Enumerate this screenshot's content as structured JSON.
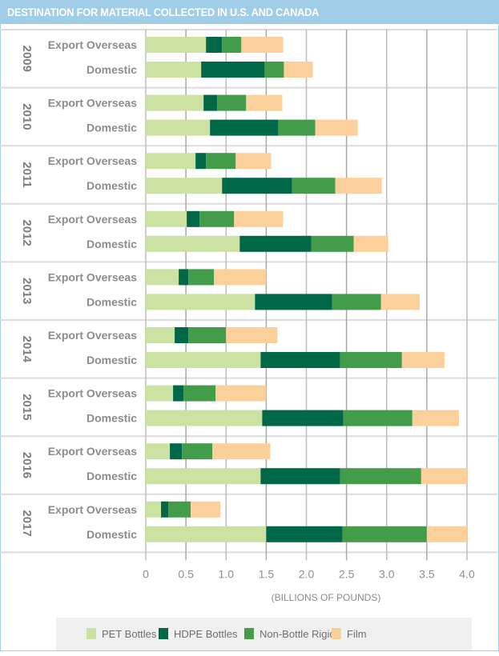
{
  "chart_data": {
    "type": "bar",
    "orientation": "horizontal",
    "stacked": true,
    "title": "DESTINATION FOR MATERIAL COLLECTED IN U.S. AND CANADA",
    "xlabel": "(BILLIONS OF POUNDS)",
    "ylabel": "",
    "xlim": [
      0,
      4.0
    ],
    "xticks": [
      "0",
      "0.5",
      "1.0",
      "1.5",
      "2.0",
      "2.5",
      "3.0",
      "3.5",
      "4.0"
    ],
    "grid": true,
    "legend_position": "bottom",
    "groups": [
      "2009",
      "2010",
      "2011",
      "2012",
      "2013",
      "2014",
      "2015",
      "2016",
      "2017"
    ],
    "categories": [
      "Export Overseas",
      "Domestic"
    ],
    "series": [
      {
        "name": "PET Bottles",
        "color": "#cce2a2",
        "values": [
          [
            0.75,
            0.69
          ],
          [
            0.72,
            0.8
          ],
          [
            0.62,
            0.95
          ],
          [
            0.51,
            1.17
          ],
          [
            0.41,
            1.36
          ],
          [
            0.36,
            1.43
          ],
          [
            0.34,
            1.45
          ],
          [
            0.3,
            1.43
          ],
          [
            0.19,
            1.5
          ]
        ]
      },
      {
        "name": "HDPE Bottles",
        "color": "#006747",
        "values": [
          [
            0.2,
            0.79
          ],
          [
            0.17,
            0.85
          ],
          [
            0.13,
            0.87
          ],
          [
            0.16,
            0.89
          ],
          [
            0.12,
            0.96
          ],
          [
            0.17,
            0.99
          ],
          [
            0.13,
            1.01
          ],
          [
            0.15,
            0.99
          ],
          [
            0.09,
            0.95
          ]
        ]
      },
      {
        "name": "Non-Bottle Rigids",
        "color": "#439c4a",
        "values": [
          [
            0.24,
            0.24
          ],
          [
            0.36,
            0.46
          ],
          [
            0.37,
            0.54
          ],
          [
            0.43,
            0.53
          ],
          [
            0.32,
            0.61
          ],
          [
            0.47,
            0.77
          ],
          [
            0.4,
            0.86
          ],
          [
            0.38,
            1.01
          ],
          [
            0.28,
            1.05
          ]
        ]
      },
      {
        "name": "Film",
        "color": "#fcd09a",
        "values": [
          [
            0.52,
            0.36
          ],
          [
            0.45,
            0.53
          ],
          [
            0.44,
            0.58
          ],
          [
            0.61,
            0.43
          ],
          [
            0.65,
            0.48
          ],
          [
            0.64,
            0.53
          ],
          [
            0.63,
            0.58
          ],
          [
            0.72,
            0.57
          ],
          [
            0.37,
            0.5
          ]
        ]
      }
    ]
  }
}
